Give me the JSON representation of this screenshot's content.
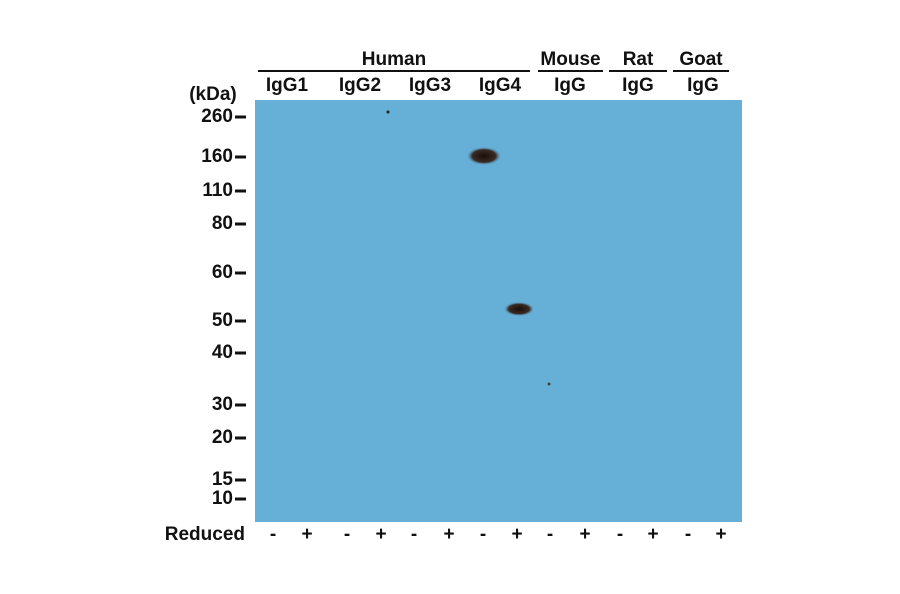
{
  "unit": "(kDa)",
  "groups": [
    {
      "label": "Human",
      "lanes": [
        "IgG1",
        "IgG2",
        "IgG3",
        "IgG4"
      ]
    },
    {
      "label": "Mouse",
      "lanes": [
        "IgG"
      ]
    },
    {
      "label": "Rat",
      "lanes": [
        "IgG"
      ]
    },
    {
      "label": "Goat",
      "lanes": [
        "IgG"
      ]
    }
  ],
  "markers": [
    "260",
    "160",
    "110",
    "80",
    "60",
    "50",
    "40",
    "30",
    "20",
    "15",
    "10"
  ],
  "reduced": {
    "label": "Reduced",
    "signs": [
      "-",
      "+",
      "-",
      "+",
      "-",
      "+",
      "-",
      "+",
      "-",
      "+",
      "-",
      "+",
      "-",
      "+"
    ]
  }
}
